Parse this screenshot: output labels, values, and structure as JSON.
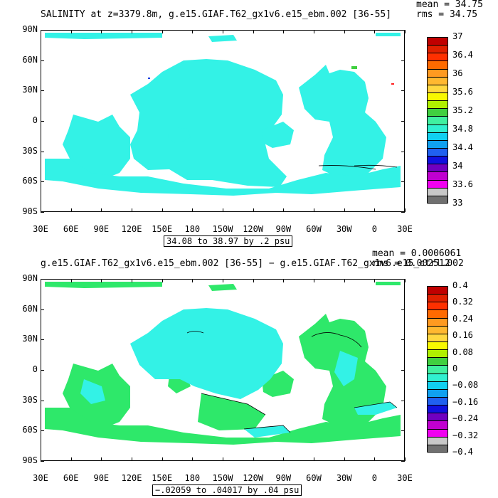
{
  "panels": [
    {
      "title": "SALINITY at z=3379.8m, g.e15.GIAF.T62_gx1v6.e15_ebm.002 [36-55]",
      "stats": {
        "mean": "mean = 34.75",
        "rms": "rms = 34.75"
      },
      "range_text": "34.08 to 38.97 by .2 psu",
      "colorbar": {
        "colors": [
          "#c00000",
          "#e02000",
          "#ff3000",
          "#ff6a00",
          "#ff9a20",
          "#ffb830",
          "#ffd840",
          "#f8f800",
          "#b0f000",
          "#40d040",
          "#40f0a0",
          "#30f0d0",
          "#10d0f0",
          "#10a0f0",
          "#2060f0",
          "#1010e0",
          "#7000c0",
          "#c000d0",
          "#f000f0",
          "#c8c8c8",
          "#707070"
        ],
        "labels": [
          "37",
          "36.4",
          "36",
          "35.6",
          "35.2",
          "34.8",
          "34.4",
          "34",
          "33.6",
          "33"
        ]
      },
      "field_color": "#33f2e6"
    },
    {
      "title": "g.e15.GIAF.T62_gx1v6.e15_ebm.002 [36-55] − g.e15.GIAF.T62_gx1v6.e15_ctrl.002",
      "stats": {
        "mean": "mean = 0.0006061",
        "rms": "rms = 0.002512"
      },
      "range_text": "−.02059 to .04017 by .04 psu",
      "colorbar": {
        "colors": [
          "#c00000",
          "#e02000",
          "#ff3000",
          "#ff6a00",
          "#ff9a20",
          "#ffb830",
          "#ffd840",
          "#f8f800",
          "#b0f000",
          "#40d040",
          "#40f0a0",
          "#30f0d0",
          "#10d0f0",
          "#10a0f0",
          "#2060f0",
          "#1010e0",
          "#7000c0",
          "#c000d0",
          "#f000f0",
          "#c8c8c8",
          "#707070"
        ],
        "labels": [
          "0.4",
          "0.32",
          "0.24",
          "0.16",
          "0.08",
          "0",
          "−0.08",
          "−0.16",
          "−0.24",
          "−0.32",
          "−0.4"
        ]
      },
      "field_color": "#2ee86a",
      "secondary_color": "#33f2e6"
    }
  ],
  "axes": {
    "ylabels": [
      "90N",
      "60N",
      "30N",
      "0",
      "30S",
      "60S",
      "90S"
    ],
    "xlabels": [
      "30E",
      "60E",
      "90E",
      "120E",
      "150E",
      "180",
      "150W",
      "120W",
      "90W",
      "60W",
      "30W",
      "0",
      "30E"
    ]
  }
}
